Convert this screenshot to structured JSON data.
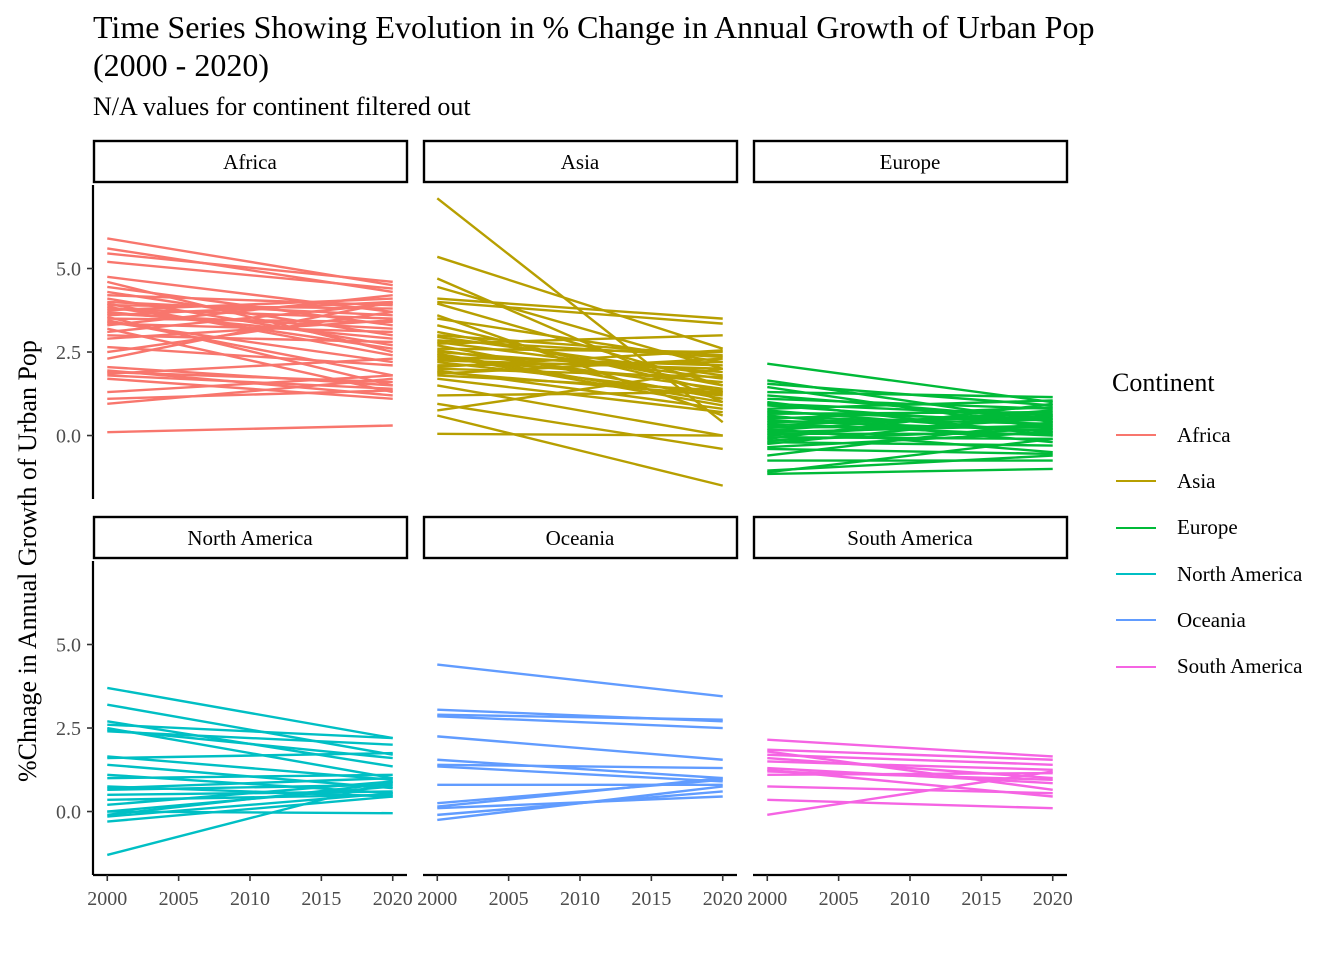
{
  "chart_data": {
    "type": "line",
    "title": "Time Series Showing Evolution in % Change in Annual Growth of Urban Pop\n    (2000 - 2020)",
    "subtitle": "N/A values for continent filtered out",
    "ylabel": "%Chnage in Annual Growth of Urban Pop",
    "xlabel": "",
    "xlim": [
      1999,
      2021
    ],
    "ylim": [
      -1.9,
      7.5
    ],
    "x_ticks": [
      2000,
      2005,
      2010,
      2015,
      2020
    ],
    "x_tick_labels": [
      "2000",
      "2005",
      "2010",
      "2015",
      "2020"
    ],
    "y_ticks": [
      0,
      2.5,
      5
    ],
    "y_tick_labels": [
      "0.0",
      "2.5",
      "5.0"
    ],
    "legend": {
      "title": "Continent",
      "placement": "right"
    },
    "facets": [
      {
        "name": "Africa",
        "color": "#F8766D",
        "series": [
          [
            5.9,
            4.5
          ],
          [
            5.6,
            4.3
          ],
          [
            5.45,
            4.6
          ],
          [
            5.2,
            4.4
          ],
          [
            4.75,
            3.7
          ],
          [
            4.6,
            2.5
          ],
          [
            4.45,
            3.3
          ],
          [
            4.3,
            3.0
          ],
          [
            4.2,
            3.9
          ],
          [
            4.1,
            2.7
          ],
          [
            4.0,
            3.6
          ],
          [
            3.95,
            2.4
          ],
          [
            3.9,
            3.8
          ],
          [
            3.85,
            2.6
          ],
          [
            3.8,
            3.5
          ],
          [
            3.75,
            4.1
          ],
          [
            3.7,
            2.9
          ],
          [
            3.65,
            3.2
          ],
          [
            3.6,
            4.0
          ],
          [
            3.55,
            1.5
          ],
          [
            3.5,
            3.4
          ],
          [
            3.45,
            1.8
          ],
          [
            3.4,
            2.2
          ],
          [
            3.35,
            3.1
          ],
          [
            3.3,
            4.2
          ],
          [
            3.2,
            1.3
          ],
          [
            3.1,
            3.95
          ],
          [
            3.0,
            2.8
          ],
          [
            2.9,
            3.45
          ],
          [
            2.65,
            2.1
          ],
          [
            2.5,
            3.7
          ],
          [
            2.3,
            4.0
          ],
          [
            2.05,
            1.5
          ],
          [
            1.95,
            1.2
          ],
          [
            1.9,
            1.6
          ],
          [
            1.85,
            2.3
          ],
          [
            1.8,
            1.4
          ],
          [
            1.7,
            1.1
          ],
          [
            1.3,
            1.8
          ],
          [
            1.1,
            1.35
          ],
          [
            0.95,
            1.7
          ],
          [
            0.1,
            0.3
          ]
        ]
      },
      {
        "name": "Asia",
        "color": "#B79F00",
        "series": [
          [
            7.1,
            0.4
          ],
          [
            5.35,
            2.6
          ],
          [
            4.7,
            1.0
          ],
          [
            4.45,
            2.0
          ],
          [
            4.1,
            3.5
          ],
          [
            4.0,
            3.35
          ],
          [
            3.95,
            1.5
          ],
          [
            3.6,
            0.6
          ],
          [
            3.5,
            2.2
          ],
          [
            3.3,
            1.3
          ],
          [
            3.1,
            1.5
          ],
          [
            3.0,
            2.4
          ],
          [
            2.95,
            1.8
          ],
          [
            2.85,
            2.35
          ],
          [
            2.8,
            1.7
          ],
          [
            2.75,
            3.0
          ],
          [
            2.7,
            1.1
          ],
          [
            2.6,
            2.5
          ],
          [
            2.55,
            1.4
          ],
          [
            2.5,
            1.9
          ],
          [
            2.45,
            1.0
          ],
          [
            2.4,
            0.9
          ],
          [
            2.35,
            2.1
          ],
          [
            2.3,
            1.6
          ],
          [
            2.25,
            2.0
          ],
          [
            2.2,
            1.25
          ],
          [
            2.1,
            2.2
          ],
          [
            2.05,
            2.55
          ],
          [
            2.0,
            1.75
          ],
          [
            1.95,
            0.8
          ],
          [
            1.9,
            1.2
          ],
          [
            1.85,
            2.3
          ],
          [
            1.8,
            1.35
          ],
          [
            1.7,
            0.7
          ],
          [
            1.5,
            0.0
          ],
          [
            1.2,
            1.3
          ],
          [
            0.95,
            -0.4
          ],
          [
            0.75,
            2.0
          ],
          [
            0.6,
            -1.5
          ],
          [
            0.05,
            0.0
          ]
        ]
      },
      {
        "name": "Europe",
        "color": "#00BA38",
        "series": [
          [
            2.15,
            1.0
          ],
          [
            1.65,
            0.4
          ],
          [
            1.55,
            0.9
          ],
          [
            1.45,
            0.2
          ],
          [
            1.3,
            1.15
          ],
          [
            1.2,
            0.5
          ],
          [
            1.1,
            0.8
          ],
          [
            1.0,
            0.0
          ],
          [
            0.95,
            0.6
          ],
          [
            0.9,
            0.3
          ],
          [
            0.8,
            1.05
          ],
          [
            0.75,
            0.1
          ],
          [
            0.7,
            0.45
          ],
          [
            0.65,
            0.7
          ],
          [
            0.6,
            -0.2
          ],
          [
            0.55,
            0.35
          ],
          [
            0.5,
            0.85
          ],
          [
            0.45,
            0.15
          ],
          [
            0.4,
            0.55
          ],
          [
            0.35,
            0.0
          ],
          [
            0.3,
            0.65
          ],
          [
            0.25,
            0.25
          ],
          [
            0.2,
            -0.5
          ],
          [
            0.15,
            0.75
          ],
          [
            0.1,
            0.3
          ],
          [
            0.05,
            0.05
          ],
          [
            0.0,
            0.5
          ],
          [
            -0.05,
            -0.1
          ],
          [
            -0.1,
            0.95
          ],
          [
            -0.15,
            0.2
          ],
          [
            -0.2,
            -0.3
          ],
          [
            -0.25,
            0.6
          ],
          [
            -0.35,
            0.1
          ],
          [
            -0.4,
            -0.55
          ],
          [
            -0.6,
            0.4
          ],
          [
            -0.75,
            -0.75
          ],
          [
            -1.05,
            -0.6
          ],
          [
            -1.1,
            -0.1
          ],
          [
            -1.15,
            -1.0
          ]
        ]
      },
      {
        "name": "North America",
        "color": "#00BFC4",
        "series": [
          [
            3.7,
            2.2
          ],
          [
            3.2,
            1.7
          ],
          [
            2.7,
            1.35
          ],
          [
            2.6,
            2.2
          ],
          [
            2.5,
            1.0
          ],
          [
            2.45,
            1.6
          ],
          [
            2.4,
            2.0
          ],
          [
            1.65,
            0.95
          ],
          [
            1.6,
            1.75
          ],
          [
            1.4,
            0.7
          ],
          [
            1.1,
            0.55
          ],
          [
            1.0,
            1.1
          ],
          [
            0.75,
            0.45
          ],
          [
            0.7,
            1.0
          ],
          [
            0.65,
            0.8
          ],
          [
            0.5,
            0.6
          ],
          [
            0.35,
            0.5
          ],
          [
            0.2,
            0.9
          ],
          [
            0.0,
            0.75
          ],
          [
            -0.1,
            0.85
          ],
          [
            -0.15,
            0.55
          ],
          [
            -0.3,
            0.45
          ],
          [
            0.0,
            -0.05
          ],
          [
            -1.3,
            0.9
          ]
        ]
      },
      {
        "name": "Oceania",
        "color": "#619CFF",
        "series": [
          [
            4.4,
            3.45
          ],
          [
            3.05,
            2.7
          ],
          [
            2.9,
            2.75
          ],
          [
            2.85,
            2.5
          ],
          [
            2.25,
            1.55
          ],
          [
            1.55,
            1.0
          ],
          [
            1.4,
            1.3
          ],
          [
            1.35,
            0.9
          ],
          [
            0.8,
            0.8
          ],
          [
            0.25,
            0.95
          ],
          [
            0.15,
            1.0
          ],
          [
            0.1,
            0.45
          ],
          [
            -0.1,
            0.6
          ],
          [
            -0.25,
            0.75
          ]
        ]
      },
      {
        "name": "South America",
        "color": "#F564E3",
        "series": [
          [
            2.15,
            1.65
          ],
          [
            1.85,
            1.55
          ],
          [
            1.8,
            0.65
          ],
          [
            1.7,
            1.4
          ],
          [
            1.6,
            1.0
          ],
          [
            1.5,
            1.25
          ],
          [
            1.3,
            0.85
          ],
          [
            1.25,
            0.45
          ],
          [
            1.2,
            0.95
          ],
          [
            1.1,
            1.15
          ],
          [
            0.75,
            0.55
          ],
          [
            0.35,
            0.1
          ],
          [
            -0.1,
            1.2
          ]
        ]
      }
    ]
  }
}
